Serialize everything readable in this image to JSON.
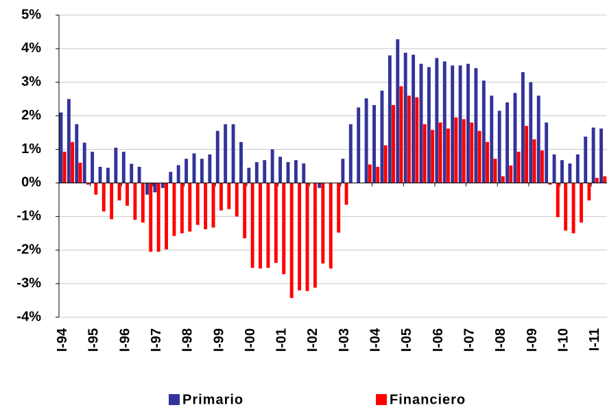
{
  "chart_data": {
    "type": "bar",
    "categories": [
      "I-94",
      null,
      null,
      null,
      "I-95",
      null,
      null,
      null,
      "I-96",
      null,
      null,
      null,
      "I-97",
      null,
      null,
      null,
      "I-98",
      null,
      null,
      null,
      "I-99",
      null,
      null,
      null,
      "I-00",
      null,
      null,
      null,
      "I-01",
      null,
      null,
      null,
      "I-02",
      null,
      null,
      null,
      "I-03",
      null,
      null,
      null,
      "I-04",
      null,
      null,
      null,
      "I-05",
      null,
      null,
      null,
      "I-06",
      null,
      null,
      null,
      "I-07",
      null,
      null,
      null,
      "I-08",
      null,
      null,
      null,
      "I-09",
      null,
      null,
      null,
      "I-10",
      null,
      null,
      null,
      "I-11",
      null
    ],
    "series": [
      {
        "name": "Primario",
        "color": "#333399",
        "values": [
          2.1,
          2.5,
          1.75,
          1.2,
          0.93,
          0.48,
          0.45,
          1.05,
          0.93,
          0.57,
          0.48,
          -0.35,
          -0.28,
          -0.15,
          0.33,
          0.53,
          0.72,
          0.88,
          0.72,
          0.85,
          1.55,
          1.75,
          1.75,
          1.22,
          0.45,
          0.62,
          0.68,
          1.0,
          0.78,
          0.62,
          0.68,
          0.58,
          0,
          -0.15,
          0,
          0,
          0.72,
          1.75,
          2.25,
          2.52,
          2.32,
          2.75,
          3.8,
          4.28,
          3.88,
          3.82,
          3.55,
          3.45,
          3.72,
          3.62,
          3.5,
          3.5,
          3.55,
          3.42,
          3.05,
          2.6,
          2.15,
          2.4,
          2.68,
          3.3,
          3.0,
          2.6,
          1.8,
          0.85,
          0.68,
          0.58,
          0.85,
          1.38,
          1.65,
          1.62
        ]
      },
      {
        "name": "Financiero",
        "color": "#ff0000",
        "values": [
          0.93,
          1.22,
          0.6,
          -0.05,
          -0.35,
          -0.85,
          -1.08,
          -0.52,
          -0.68,
          -1.1,
          -1.18,
          -2.05,
          -2.05,
          -1.98,
          -1.58,
          -1.5,
          -1.45,
          -1.25,
          -1.38,
          -1.33,
          -0.82,
          -0.78,
          -1.0,
          -1.65,
          -2.53,
          -2.55,
          -2.53,
          -2.38,
          -2.72,
          -3.43,
          -3.2,
          -3.22,
          -3.12,
          -2.4,
          -2.55,
          -1.48,
          -0.65,
          0,
          0,
          0.55,
          0.48,
          1.12,
          2.32,
          2.88,
          2.6,
          2.55,
          1.75,
          1.58,
          1.8,
          1.62,
          1.95,
          1.9,
          1.8,
          1.55,
          1.22,
          0.72,
          0.2,
          0.52,
          0.93,
          1.7,
          1.3,
          0.97,
          -0.05,
          -1.02,
          -1.42,
          -1.5,
          -1.18,
          -0.52,
          0.15,
          0.2
        ]
      }
    ],
    "ylim": [
      -4,
      5
    ],
    "yticks": [
      {
        "value": -4,
        "label": "-4%"
      },
      {
        "value": -3,
        "label": "-3%"
      },
      {
        "value": -2,
        "label": "-2%"
      },
      {
        "value": -1,
        "label": "-1%"
      },
      {
        "value": 0,
        "label": "0%"
      },
      {
        "value": 1,
        "label": "1%"
      },
      {
        "value": 2,
        "label": "2%"
      },
      {
        "value": 3,
        "label": "3%"
      },
      {
        "value": 4,
        "label": "4%"
      },
      {
        "value": 5,
        "label": "5%"
      }
    ],
    "grid": true
  }
}
